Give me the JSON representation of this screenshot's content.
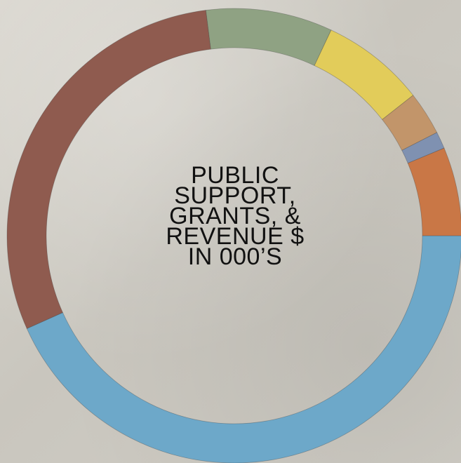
{
  "chart_data": {
    "type": "pie",
    "title": "PUBLIC\nSUPPORT,\nGRANTS, &\nREVENUE $\nIN 000’S",
    "donut": true,
    "slices": [
      {
        "value": 43.3,
        "color": "#6da8c9"
      },
      {
        "value": 29.7,
        "color": "#8f5b4f"
      },
      {
        "value": 9.0,
        "color": "#8fa283"
      },
      {
        "value": 7.4,
        "color": "#e2cc5a"
      },
      {
        "value": 3.1,
        "color": "#c2956a"
      },
      {
        "value": 1.2,
        "color": "#7f91b1"
      },
      {
        "value": 6.3,
        "color": "#c97746"
      }
    ]
  }
}
